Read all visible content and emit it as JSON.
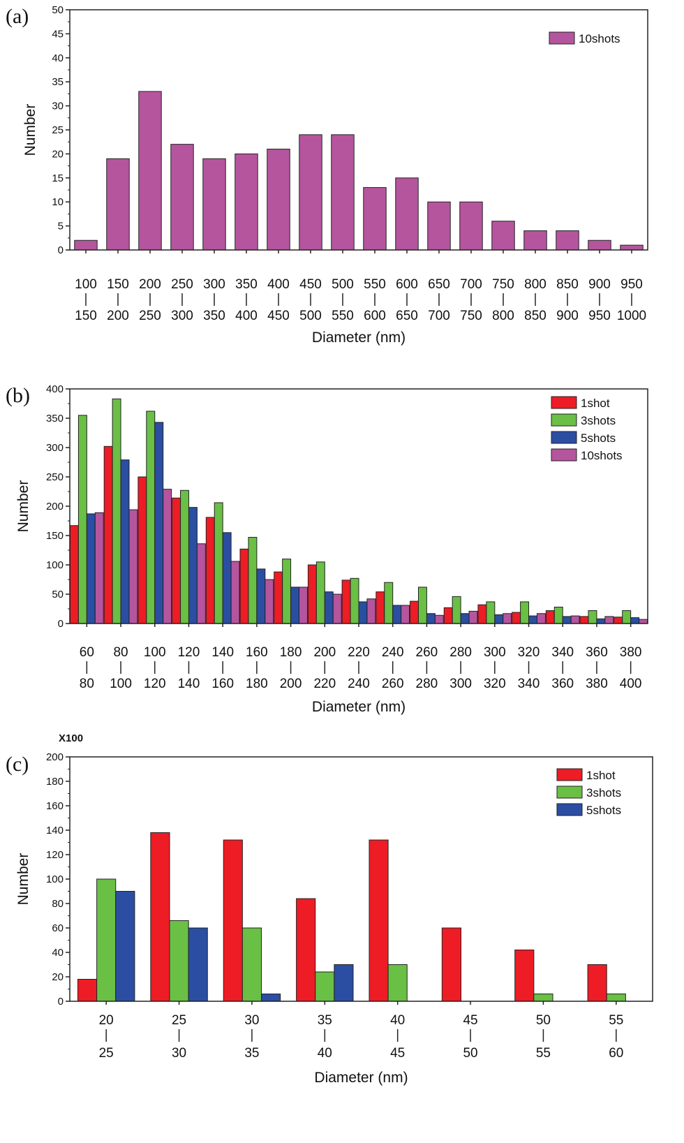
{
  "chart_data": [
    {
      "type": "bar",
      "panel_label": "(a)",
      "categories": [
        [
          "100",
          "150"
        ],
        [
          "150",
          "200"
        ],
        [
          "200",
          "250"
        ],
        [
          "250",
          "300"
        ],
        [
          "300",
          "350"
        ],
        [
          "350",
          "400"
        ],
        [
          "400",
          "450"
        ],
        [
          "450",
          "500"
        ],
        [
          "500",
          "550"
        ],
        [
          "550",
          "600"
        ],
        [
          "600",
          "650"
        ],
        [
          "650",
          "700"
        ],
        [
          "700",
          "750"
        ],
        [
          "750",
          "800"
        ],
        [
          "800",
          "850"
        ],
        [
          "850",
          "900"
        ],
        [
          "900",
          "950"
        ],
        [
          "950",
          "1000"
        ]
      ],
      "series": [
        {
          "name": "10shots",
          "color": "#b5559e",
          "values": [
            2,
            19,
            33,
            22,
            19,
            20,
            21,
            24,
            24,
            13,
            15,
            10,
            10,
            6,
            4,
            4,
            2,
            1
          ]
        }
      ],
      "xlabel": "Diameter (nm)",
      "ylabel": "Number",
      "ylim": [
        0,
        50
      ],
      "yticks": [
        0,
        5,
        10,
        15,
        20,
        25,
        30,
        35,
        40,
        45,
        50
      ],
      "legend": "top-right",
      "grid": false
    },
    {
      "type": "bar",
      "panel_label": "(b)",
      "categories": [
        [
          "60",
          "80"
        ],
        [
          "80",
          "100"
        ],
        [
          "100",
          "120"
        ],
        [
          "120",
          "140"
        ],
        [
          "140",
          "160"
        ],
        [
          "160",
          "180"
        ],
        [
          "180",
          "200"
        ],
        [
          "200",
          "220"
        ],
        [
          "220",
          "240"
        ],
        [
          "240",
          "260"
        ],
        [
          "260",
          "280"
        ],
        [
          "280",
          "300"
        ],
        [
          "300",
          "320"
        ],
        [
          "320",
          "340"
        ],
        [
          "340",
          "360"
        ],
        [
          "360",
          "380"
        ],
        [
          "380",
          "400"
        ]
      ],
      "series": [
        {
          "name": "1shot",
          "color": "#ee1c25",
          "values": [
            167,
            302,
            250,
            214,
            181,
            127,
            88,
            100,
            74,
            54,
            38,
            27,
            32,
            19,
            22,
            12,
            11
          ]
        },
        {
          "name": "3shots",
          "color": "#6abf45",
          "values": [
            355,
            383,
            362,
            227,
            206,
            147,
            110,
            105,
            77,
            70,
            62,
            46,
            37,
            37,
            28,
            22,
            22
          ]
        },
        {
          "name": "5shots",
          "color": "#2b4ea2",
          "values": [
            187,
            279,
            343,
            198,
            155,
            93,
            62,
            54,
            37,
            31,
            17,
            17,
            15,
            13,
            12,
            8,
            10
          ]
        },
        {
          "name": "10shots",
          "color": "#b5559e",
          "values": [
            189,
            194,
            229,
            136,
            106,
            75,
            62,
            50,
            42,
            31,
            14,
            21,
            17,
            17,
            13,
            12,
            7
          ]
        }
      ],
      "xlabel": "Diameter (nm)",
      "ylabel": "Number",
      "ylim": [
        0,
        400
      ],
      "yticks": [
        0,
        50,
        100,
        150,
        200,
        250,
        300,
        350,
        400
      ],
      "legend": "top-right",
      "grid": false
    },
    {
      "type": "bar",
      "panel_label": "(c)",
      "y_multiplier": "X100",
      "categories": [
        [
          "20",
          "25"
        ],
        [
          "25",
          "30"
        ],
        [
          "30",
          "35"
        ],
        [
          "35",
          "40"
        ],
        [
          "40",
          "45"
        ],
        [
          "45",
          "50"
        ],
        [
          "50",
          "55"
        ],
        [
          "55",
          "60"
        ]
      ],
      "series": [
        {
          "name": "1shot",
          "color": "#ee1c25",
          "values": [
            18,
            138,
            132,
            84,
            132,
            60,
            42,
            30
          ]
        },
        {
          "name": "3shots",
          "color": "#6abf45",
          "values": [
            100,
            66,
            60,
            24,
            30,
            0,
            6,
            6
          ]
        },
        {
          "name": "5shots",
          "color": "#2b4ea2",
          "values": [
            90,
            60,
            6,
            30,
            0,
            0,
            0,
            0
          ]
        }
      ],
      "xlabel": "Diameter (nm)",
      "ylabel": "Number",
      "ylim": [
        0,
        200
      ],
      "yticks": [
        0,
        20,
        40,
        60,
        80,
        100,
        120,
        140,
        160,
        180,
        200
      ],
      "legend": "top-right",
      "grid": false
    }
  ]
}
